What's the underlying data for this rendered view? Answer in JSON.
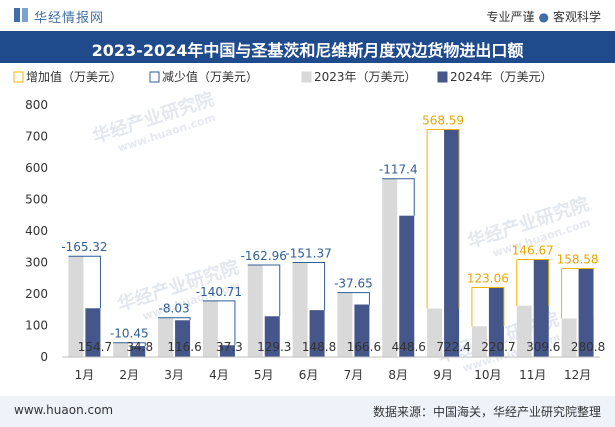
{
  "header": {
    "brand": "华经情报网",
    "tagline_left": "专业严谨",
    "tagline_right": "客观科学"
  },
  "title": "2023-2024年中国与圣基茨和尼维斯月度双边货物进出口额",
  "watermark": {
    "cn": "华经产业研究院",
    "url": "www.huaon.com"
  },
  "footer": {
    "website": "www.huaon.com",
    "source": "数据来源：中国海关，华经产业研究院整理"
  },
  "colors": {
    "title_bg": "#1f4a8c",
    "bar_2023": "#d9d9d9",
    "bar_2024": "#44568a",
    "increase": "#f0b400",
    "decrease": "#2f5f97"
  },
  "chart_data": {
    "type": "bar",
    "categories": [
      "1月",
      "2月",
      "3月",
      "4月",
      "5月",
      "6月",
      "7月",
      "8月",
      "9月",
      "10月",
      "11月",
      "12月"
    ],
    "series": [
      {
        "name": "2023年（万美元）",
        "values": [
          320.02,
          45.25,
          124.63,
          178.01,
          292.26,
          300.17,
          204.25,
          566.0,
          153.81,
          97.61,
          162.93,
          122.22
        ]
      },
      {
        "name": "2024年（万美元）",
        "values": [
          154.7,
          34.8,
          116.6,
          37.3,
          129.3,
          148.8,
          166.6,
          448.6,
          722.4,
          220.7,
          309.6,
          280.8
        ]
      }
    ],
    "value_labels_2024": [
      "154.7",
      "34.8",
      "116.6",
      "37.3",
      "129.3",
      "148.8",
      "166.6",
      "448.6",
      "722.4",
      "220.7",
      "309.6",
      "280.8"
    ],
    "changes": [
      -165.32,
      -10.45,
      -8.03,
      -140.71,
      -162.96,
      -151.37,
      -37.65,
      -117.4,
      568.59,
      123.06,
      146.67,
      158.58
    ],
    "change_labels": [
      "-165.32",
      "-10.45",
      "-8.03",
      "-140.71",
      "-162.96",
      "-151.37",
      "-37.65",
      "-117.4",
      "568.59",
      "123.06",
      "146.67",
      "158.58"
    ],
    "legend": [
      "增加值（万美元）",
      "减少值（万美元）",
      "2023年（万美元）",
      "2024年（万美元）"
    ],
    "yticks": [
      0,
      100,
      200,
      300,
      400,
      500,
      600,
      700,
      800
    ],
    "ylim": [
      0,
      800
    ],
    "grid": false,
    "legend_position": "top-left"
  }
}
